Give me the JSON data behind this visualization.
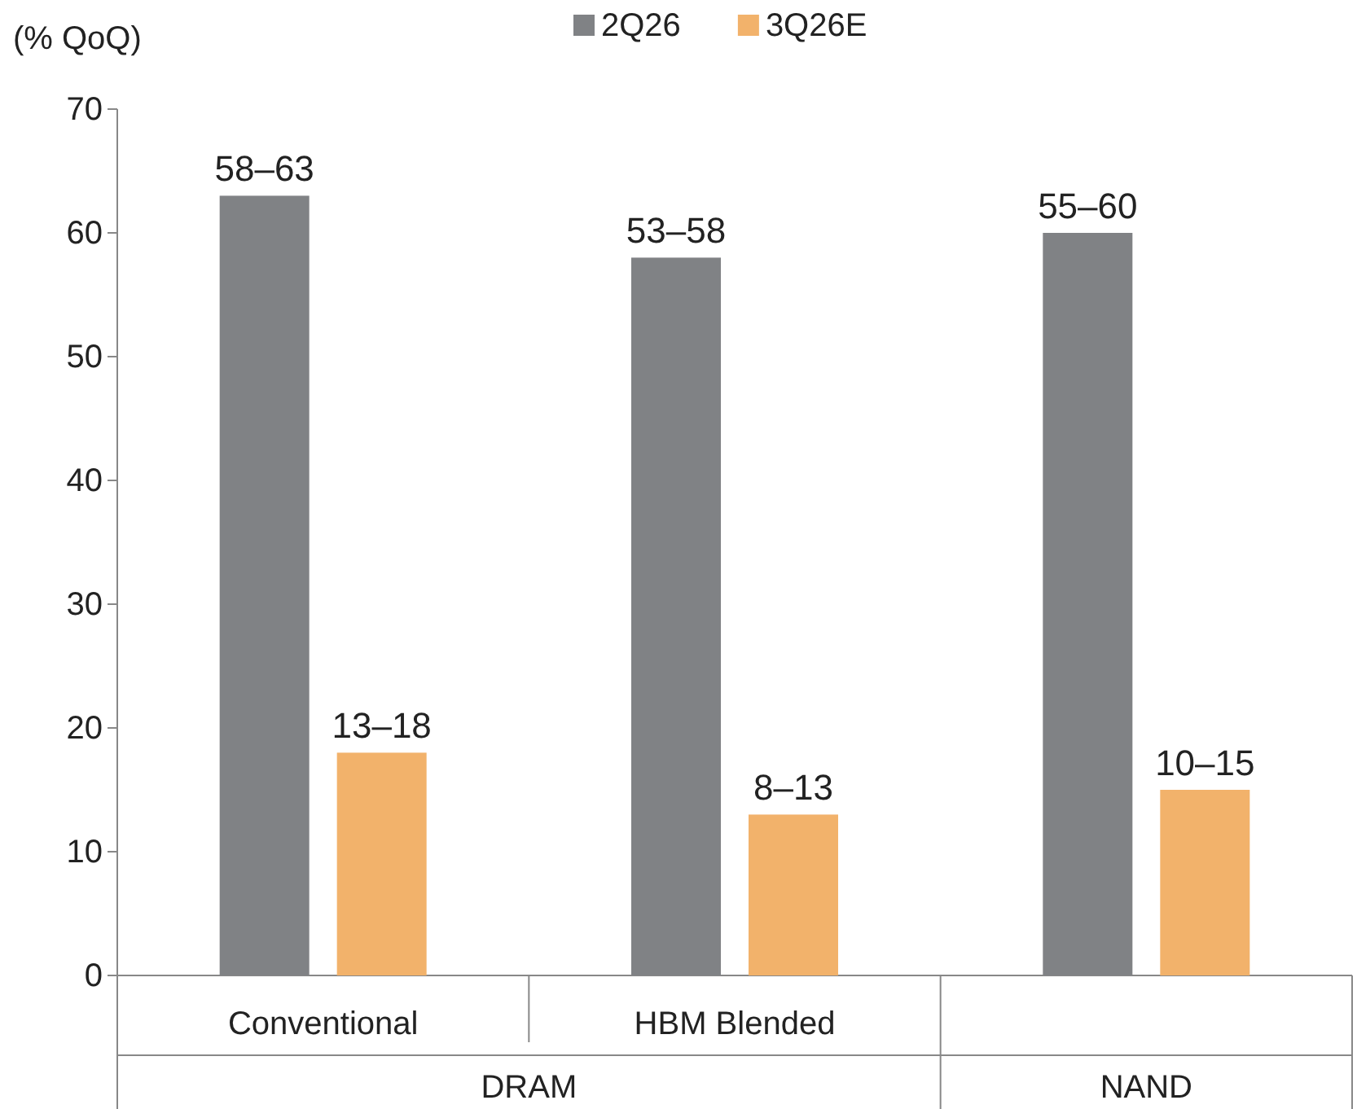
{
  "chart_data": {
    "type": "bar",
    "ylabel": "(% QoQ)",
    "categories": [
      "Conventional",
      "HBM Blended",
      null
    ],
    "series": [
      {
        "name": "2Q26",
        "color": "#808285",
        "values": [
          63,
          58,
          60
        ],
        "value_labels": [
          "58–63",
          "53–58",
          "55–60"
        ]
      },
      {
        "name": "3Q26E",
        "color": "#f2b26b",
        "values": [
          18,
          13,
          15
        ],
        "value_labels": [
          "13–18",
          "8–13",
          "10–15"
        ]
      }
    ],
    "annotations": [
      "DRAM",
      "NAND"
    ],
    "ylim": [
      0,
      70
    ],
    "yticks": [
      0,
      10,
      20,
      30,
      40,
      50,
      60,
      70
    ],
    "grid": false,
    "legend": "top"
  }
}
